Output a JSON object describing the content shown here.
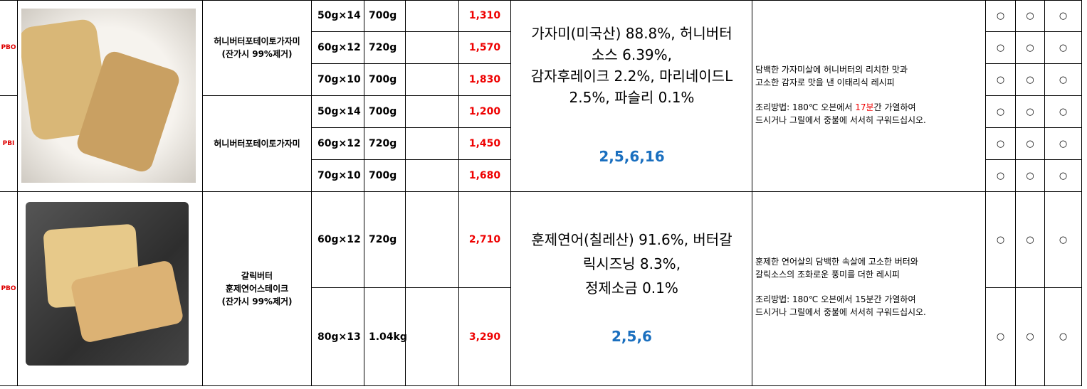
{
  "groups": [
    {
      "variants": [
        {
          "code": "PBO",
          "name": [
            "허니버터포테이토가자미",
            "(잔가시 99%제거)"
          ],
          "rows": [
            {
              "spec": "50g×14",
              "weight": "700g",
              "price": "1,310",
              "marks": [
                "○",
                "○",
                "○"
              ]
            },
            {
              "spec": "60g×12",
              "weight": "720g",
              "price": "1,570",
              "marks": [
                "○",
                "○",
                "○"
              ]
            },
            {
              "spec": "70g×10",
              "weight": "700g",
              "price": "1,830",
              "marks": [
                "○",
                "○",
                "○"
              ]
            }
          ]
        },
        {
          "code": "PBI",
          "name": [
            "허니버터포테이토가자미"
          ],
          "rows": [
            {
              "spec": "50g×14",
              "weight": "700g",
              "price": "1,200",
              "marks": [
                "○",
                "○",
                "○"
              ]
            },
            {
              "spec": "60g×12",
              "weight": "720g",
              "price": "1,450",
              "marks": [
                "○",
                "○",
                "○"
              ]
            },
            {
              "spec": "70g×10",
              "weight": "700g",
              "price": "1,680",
              "marks": [
                "○",
                "○",
                "○"
              ]
            }
          ]
        }
      ],
      "ingredients": [
        "가자미(미국산) 88.8%, 허니버터",
        "소스 6.39%,",
        "감자후레이크 2.2%, 마리네이드L",
        "2.5%, 파슬리 0.1%"
      ],
      "allergens": "2,5,6,16",
      "description": [
        "담백한 가자미살에 허니버터의 리치한 맛과",
        "고소한 감자로 맛을 낸 이태리식 레시피"
      ],
      "method": [
        [
          "조리방법: 180℃ 오븐에서 ",
          "17분",
          "간 가열하여"
        ],
        [
          "드시거나 그릴에서 중불에 서서히 구워드십시오."
        ]
      ]
    },
    {
      "variants": [
        {
          "code": "PBO",
          "name": [
            "갈릭버터",
            "훈제연어스테이크",
            "(잔가시 99%제거)"
          ],
          "rows": [
            {
              "spec": "60g×12",
              "weight": "720g",
              "price": "2,710",
              "marks": [
                "○",
                "○",
                "○"
              ]
            },
            {
              "spec": "80g×13",
              "weight": "1.04kg",
              "price": "3,290",
              "marks": [
                "○",
                "○",
                "○"
              ]
            }
          ]
        }
      ],
      "ingredients": [
        "훈제연어(칠레산) 91.6%, 버터갈",
        "릭시즈닝 8.3%,",
        "정제소금 0.1%"
      ],
      "allergens": "2,5,6",
      "description": [
        "훈제한 연어살의 담백한 속살에 고소한 버터와",
        "갈릭소스의 조화로운 풍미를 더한 레시피"
      ],
      "method": [
        [
          "조리방법: 180℃ 오븐에서 15분간 가열하여"
        ],
        [
          "드시거나 그릴에서 중불에 서서히 구워드십시오."
        ]
      ]
    }
  ]
}
